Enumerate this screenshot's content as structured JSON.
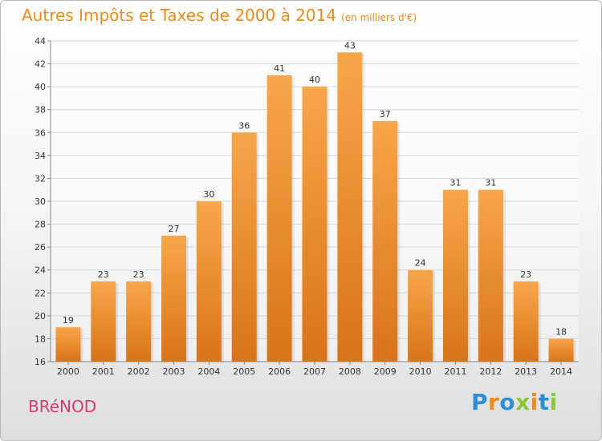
{
  "title": "Autres Impôts et Taxes de 2000 à 2014",
  "subtitle": "(en milliers d'€)",
  "place": "BRéNOD",
  "logo": "Proxiti",
  "colors": {
    "bar": "#f0962e",
    "title": "#f08a1c",
    "place": "#d4406a"
  },
  "chart_data": {
    "type": "bar",
    "categories": [
      "2000",
      "2001",
      "2002",
      "2003",
      "2004",
      "2005",
      "2006",
      "2007",
      "2008",
      "2009",
      "2010",
      "2011",
      "2012",
      "2013",
      "2014"
    ],
    "values": [
      19,
      23,
      23,
      27,
      30,
      36,
      41,
      40,
      43,
      37,
      24,
      31,
      31,
      23,
      18
    ],
    "ylim": [
      16,
      44
    ],
    "yticks": [
      16,
      18,
      20,
      22,
      24,
      26,
      28,
      30,
      32,
      34,
      36,
      38,
      40,
      42,
      44
    ],
    "grid": true
  }
}
